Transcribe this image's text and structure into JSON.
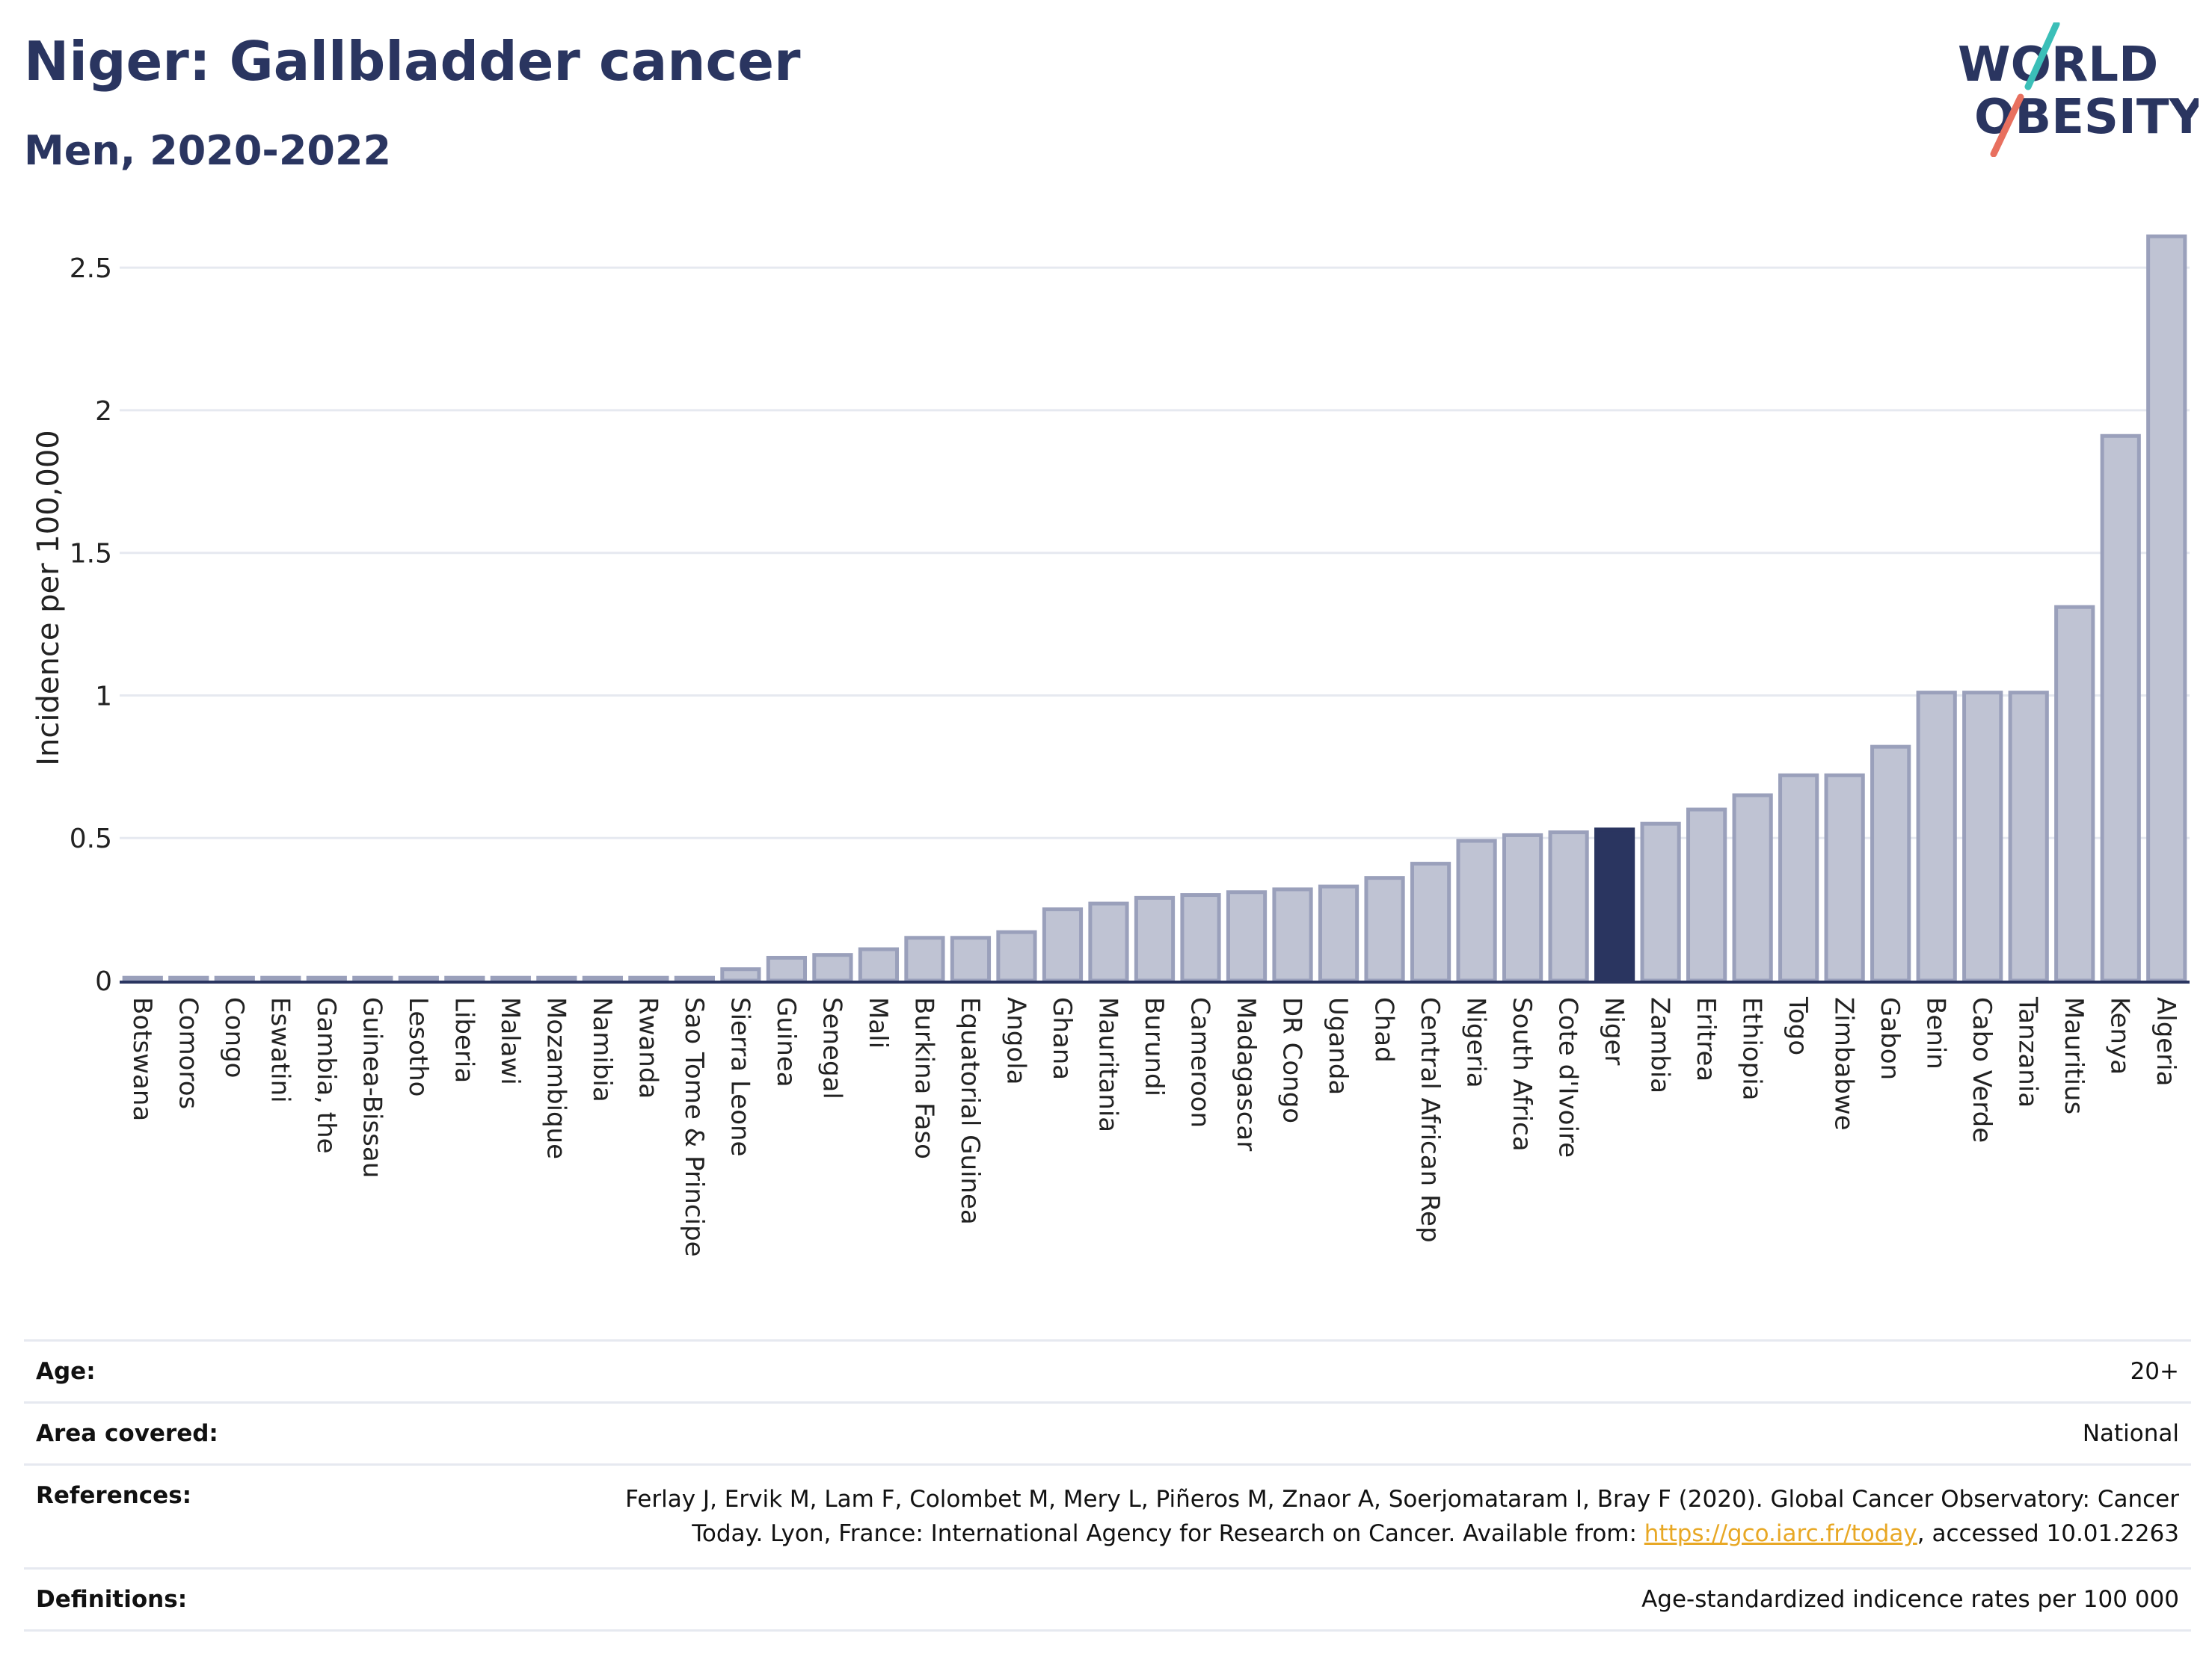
{
  "header": {
    "title": "Niger: Gallbladder cancer",
    "subtitle": "Men, 2020-2022"
  },
  "logo": {
    "line1": "WORLD",
    "line2": "OBESITY",
    "colors": {
      "text": "#2a3560",
      "slash_top": "#3bbfb8",
      "slash_bottom": "#e8705f"
    }
  },
  "chart_data": {
    "type": "bar",
    "ylabel": "Incidence per 100,000",
    "xlabel": "",
    "ylim": [
      0,
      2.6
    ],
    "yticks": [
      0,
      0.5,
      1,
      1.5,
      2,
      2.5
    ],
    "ytick_labels": [
      "0",
      "0.5",
      "1",
      "1.5",
      "2",
      "2.5"
    ],
    "grid": true,
    "highlight": "Niger",
    "colors": {
      "bar": "#bfc3d3",
      "bar_edge": "#9aa0bb",
      "highlight": "#2a3560",
      "grid": "#e6e9f0"
    },
    "categories": [
      "Botswana",
      "Comoros",
      "Congo",
      "Eswatini",
      "Gambia, the",
      "Guinea-Bissau",
      "Lesotho",
      "Liberia",
      "Malawi",
      "Mozambique",
      "Namibia",
      "Rwanda",
      "Sao Tome & Principe",
      "Sierra Leone",
      "Guinea",
      "Senegal",
      "Mali",
      "Burkina Faso",
      "Equatorial Guinea",
      "Angola",
      "Ghana",
      "Mauritania",
      "Burundi",
      "Cameroon",
      "Madagascar",
      "DR Congo",
      "Uganda",
      "Chad",
      "Central African Rep",
      "Nigeria",
      "South Africa",
      "Cote d'Ivoire",
      "Niger",
      "Zambia",
      "Eritrea",
      "Ethiopia",
      "Togo",
      "Zimbabwe",
      "Gabon",
      "Benin",
      "Cabo Verde",
      "Tanzania",
      "Mauritius",
      "Kenya",
      "Algeria"
    ],
    "values": [
      0.01,
      0.01,
      0.01,
      0.01,
      0.01,
      0.01,
      0.01,
      0.01,
      0.01,
      0.01,
      0.01,
      0.01,
      0.01,
      0.04,
      0.08,
      0.09,
      0.11,
      0.15,
      0.15,
      0.17,
      0.25,
      0.27,
      0.29,
      0.3,
      0.31,
      0.32,
      0.33,
      0.36,
      0.41,
      0.49,
      0.51,
      0.52,
      0.53,
      0.55,
      0.6,
      0.65,
      0.72,
      0.72,
      0.82,
      1.01,
      1.01,
      1.01,
      1.31,
      1.91,
      2.61
    ]
  },
  "info": {
    "age": {
      "label": "Age:",
      "value": "20+"
    },
    "area": {
      "label": "Area covered:",
      "value": "National"
    },
    "references": {
      "label": "References:",
      "text_before": "Ferlay J, Ervik M, Lam F, Colombet M, Mery L, Piñeros M, Znaor A, Soerjomataram I, Bray F (2020). Global Cancer Observatory: Cancer Today. Lyon, France: International Agency for Research on Cancer. Available from: ",
      "link": "https://gco.iarc.fr/today",
      "text_after": ", accessed 10.01.2263"
    },
    "definitions": {
      "label": "Definitions:",
      "value": "Age-standardized indicence rates per 100 000"
    }
  }
}
